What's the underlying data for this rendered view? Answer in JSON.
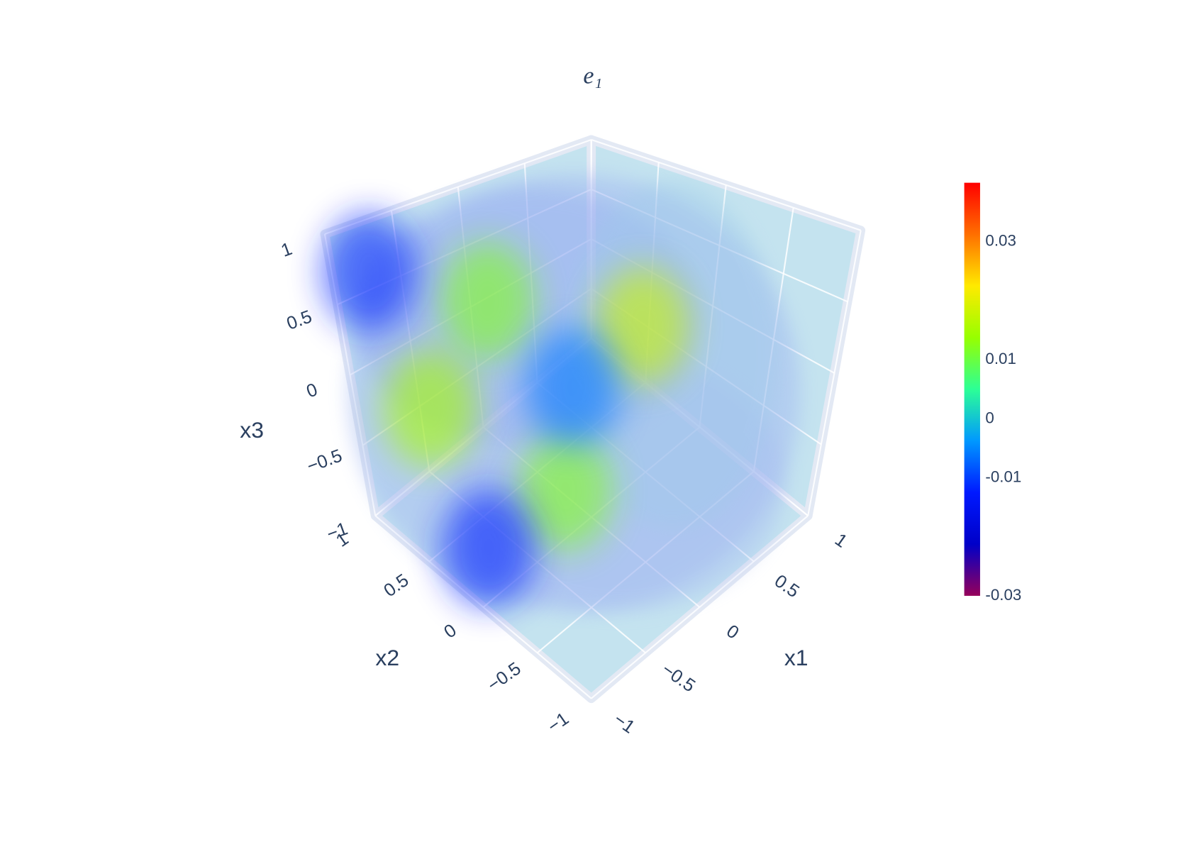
{
  "chart_data": {
    "type": "volume",
    "title": "e₁",
    "axes": {
      "x1": {
        "title": "x1",
        "lim": [
          -1,
          1
        ],
        "ticks": [
          {
            "value": -1,
            "label": "−1"
          },
          {
            "value": -0.5,
            "label": "−0.5"
          },
          0,
          0.5,
          1
        ]
      },
      "x2": {
        "title": "x2",
        "lim": [
          -1,
          1
        ],
        "ticks": [
          {
            "value": -1,
            "label": "−1"
          },
          {
            "value": -0.5,
            "label": "−0.5"
          },
          0,
          0.5,
          1
        ]
      },
      "x3": {
        "title": "x3",
        "lim": [
          -1,
          1
        ],
        "ticks": [
          {
            "value": -1,
            "label": "−1"
          },
          {
            "value": -0.5,
            "label": "−0.5"
          },
          0,
          0.5,
          1
        ]
      }
    },
    "colorbar": {
      "lim": [
        -0.03,
        0.04
      ],
      "ticks": [
        -0.03,
        -0.01,
        0,
        0.01,
        0.03
      ],
      "colorscale": [
        "#96005a",
        "#0000c8",
        "#0019ff",
        "#0098ff",
        "#2cff96",
        "#97ff00",
        "#ffea00",
        "#ff6f00",
        "#ff0000"
      ]
    },
    "points": {
      "x1": [
        -0.36,
        0.16,
        -0.8,
        -0.39,
        -0.15,
        -0.93,
        -0.81
      ],
      "x2": [
        0.46,
        -0.24,
        0.55,
        -0.16,
        0.01,
        0.77,
        0.12
      ],
      "x3": [
        0.5,
        0.4,
        -0.1,
        -0.5,
        0,
        0.8,
        -0.8
      ],
      "values": [
        0.012,
        0.018,
        0.015,
        0.012,
        -0.006,
        -0.012,
        -0.012
      ]
    }
  }
}
